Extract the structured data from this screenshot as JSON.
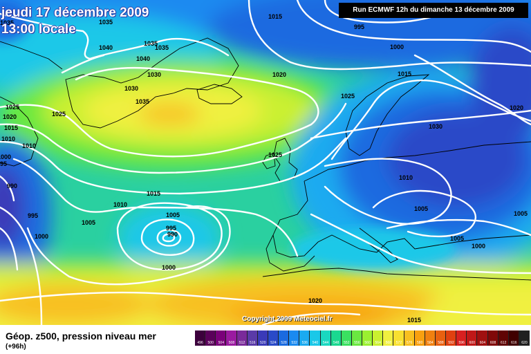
{
  "header": {
    "date_line": "jeudi 17 décembre 2009",
    "time_line": "13:00 locale",
    "run_info": "Run ECMWF 12h du dimanche 13 décembre 2009",
    "copyright": "Copyright 2009 Meteociel.fr"
  },
  "legend": {
    "title": "Géop. z500, pression niveau mer",
    "subtitle": "(+96h)",
    "scale": [
      {
        "label": "496",
        "color": "#3c003c"
      },
      {
        "label": "500",
        "color": "#5a005a"
      },
      {
        "label": "504",
        "color": "#7a007a"
      },
      {
        "label": "508",
        "color": "#9a1aa0"
      },
      {
        "label": "512",
        "color": "#7a2a9a"
      },
      {
        "label": "516",
        "color": "#5a3aa8"
      },
      {
        "label": "520",
        "color": "#3a3ab8"
      },
      {
        "label": "524",
        "color": "#2a4ac8"
      },
      {
        "label": "528",
        "color": "#1a6ae0"
      },
      {
        "label": "532",
        "color": "#1a8af0"
      },
      {
        "label": "536",
        "color": "#1aaaf0"
      },
      {
        "label": "540",
        "color": "#1ac8e8"
      },
      {
        "label": "544",
        "color": "#1ad8c0"
      },
      {
        "label": "548",
        "color": "#1ad890"
      },
      {
        "label": "552",
        "color": "#3ae060"
      },
      {
        "label": "556",
        "color": "#6ae840"
      },
      {
        "label": "560",
        "color": "#9af030"
      },
      {
        "label": "564",
        "color": "#caf030"
      },
      {
        "label": "568",
        "color": "#f0f040"
      },
      {
        "label": "572",
        "color": "#f8e030"
      },
      {
        "label": "576",
        "color": "#f8c020"
      },
      {
        "label": "580",
        "color": "#f8a010"
      },
      {
        "label": "584",
        "color": "#f08010"
      },
      {
        "label": "588",
        "color": "#e86010"
      },
      {
        "label": "592",
        "color": "#e04010"
      },
      {
        "label": "596",
        "color": "#d82020"
      },
      {
        "label": "600",
        "color": "#c01818"
      },
      {
        "label": "604",
        "color": "#a01010"
      },
      {
        "label": "608",
        "color": "#800808"
      },
      {
        "label": "612",
        "color": "#600404"
      },
      {
        "label": "616",
        "color": "#400000"
      },
      {
        "label": "620",
        "color": "#202020"
      }
    ]
  },
  "isobar_labels": [
    {
      "text": "1035"
    },
    {
      "text": "1035"
    },
    {
      "text": "1035"
    },
    {
      "text": "1040"
    },
    {
      "text": "1040"
    },
    {
      "text": "1030"
    },
    {
      "text": "1030"
    },
    {
      "text": "1035"
    },
    {
      "text": "1025"
    },
    {
      "text": "1025"
    },
    {
      "text": "1020"
    },
    {
      "text": "1015"
    },
    {
      "text": "1010"
    },
    {
      "text": "1010"
    },
    {
      "text": "1000"
    },
    {
      "text": "990"
    },
    {
      "text": "995"
    },
    {
      "text": "1000"
    },
    {
      "text": "1005"
    },
    {
      "text": "1010"
    },
    {
      "text": "1015"
    },
    {
      "text": "1005"
    },
    {
      "text": "995"
    },
    {
      "text": "990"
    },
    {
      "text": "1000"
    },
    {
      "text": "1015"
    },
    {
      "text": "995"
    },
    {
      "text": "1000"
    },
    {
      "text": "1020"
    },
    {
      "text": "1015"
    },
    {
      "text": "1025"
    },
    {
      "text": "1025"
    },
    {
      "text": "1020"
    },
    {
      "text": "1030"
    },
    {
      "text": "1010"
    },
    {
      "text": "1005"
    },
    {
      "text": "1005"
    },
    {
      "text": "1005"
    },
    {
      "text": "1000"
    },
    {
      "text": "1020"
    },
    {
      "text": "1015"
    },
    {
      "text": "1035"
    },
    {
      "text": "1020"
    },
    {
      "text": "1015"
    },
    {
      "text": "1010"
    },
    {
      "text": "95"
    }
  ]
}
